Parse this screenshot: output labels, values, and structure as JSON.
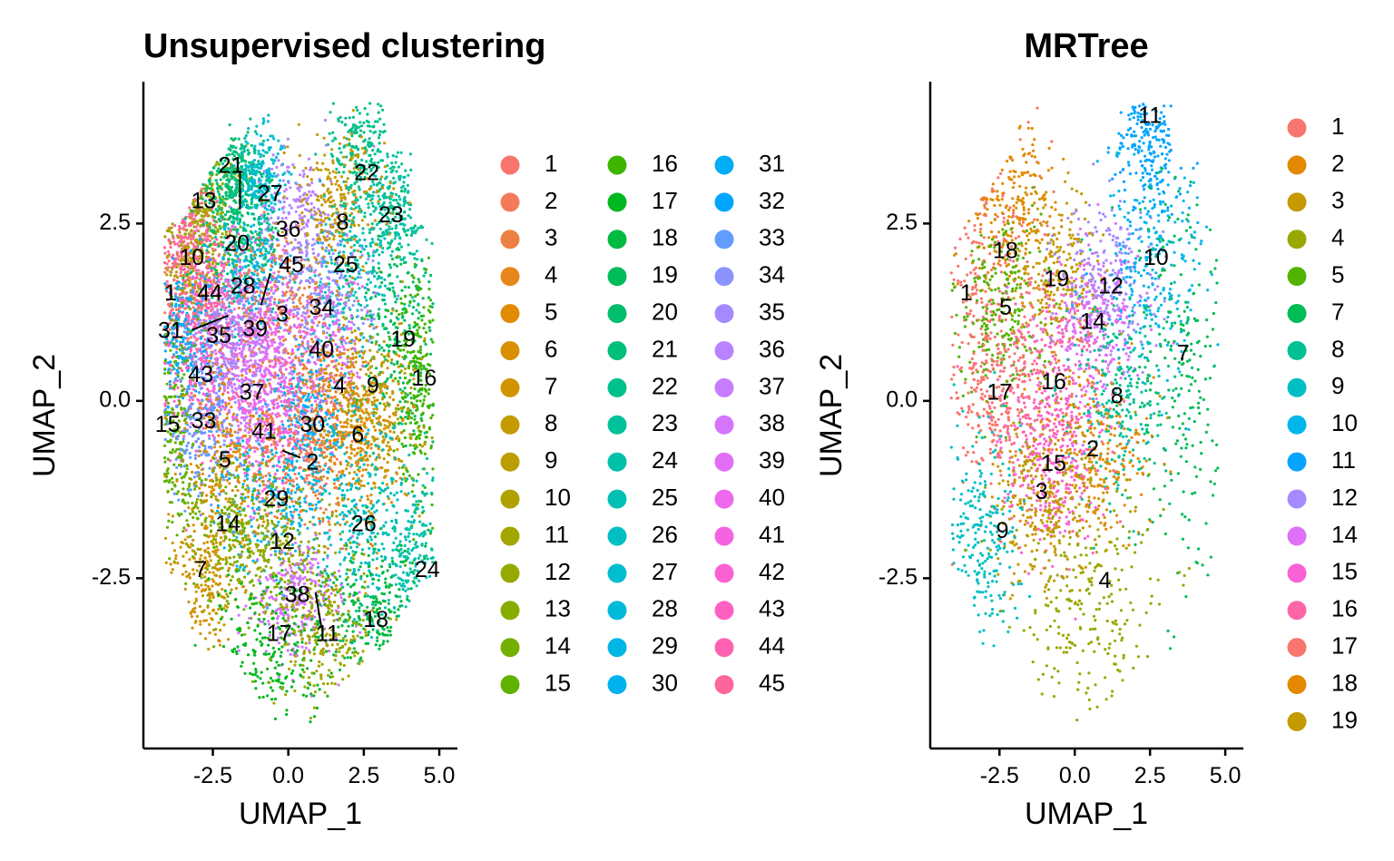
{
  "chart_data": [
    {
      "type": "scatter",
      "title": "Unsupervised clustering",
      "xlabel": "UMAP_1",
      "ylabel": "UMAP_2",
      "xlim": [
        -4.8,
        5.6
      ],
      "ylim": [
        -4.9,
        4.5
      ],
      "xticks": [
        -2.5,
        0.0,
        2.5,
        5.0
      ],
      "xtick_labels": [
        "-2.5",
        "0.0",
        "2.5",
        "5.0"
      ],
      "yticks": [
        -2.5,
        0.0,
        2.5
      ],
      "ytick_labels": [
        "-2.5",
        "0.0",
        "2.5"
      ],
      "grid": false,
      "legend_position": "right",
      "legend_columns": 3,
      "legend_items": [
        "1",
        "2",
        "3",
        "4",
        "5",
        "6",
        "7",
        "8",
        "9",
        "10",
        "11",
        "12",
        "13",
        "14",
        "15",
        "16",
        "17",
        "18",
        "19",
        "20",
        "21",
        "22",
        "23",
        "24",
        "25",
        "26",
        "27",
        "28",
        "29",
        "30",
        "31",
        "32",
        "33",
        "34",
        "35",
        "36",
        "37",
        "38",
        "39",
        "40",
        "41",
        "42",
        "43",
        "44",
        "45"
      ],
      "colors": [
        "#F8766D",
        "#F37B59",
        "#ED8141",
        "#E7861B",
        "#E08B00",
        "#D89000",
        "#CF9400",
        "#C59900",
        "#BB9D00",
        "#B0A100",
        "#A3A500",
        "#95A900",
        "#86AC00",
        "#75AF00",
        "#5FB200",
        "#3EB500",
        "#00B81F",
        "#00BA42",
        "#00BC59",
        "#00BE6B",
        "#00BF7C",
        "#00C08B",
        "#00C19A",
        "#00C1A8",
        "#00C0B5",
        "#00BFC2",
        "#00BDCF",
        "#00BADA",
        "#00B6E5",
        "#00B2EE",
        "#00ADF6",
        "#00A5FF",
        "#619CFF",
        "#8B93FF",
        "#A58AFF",
        "#B983FF",
        "#C77CFF",
        "#D575FE",
        "#E36EF6",
        "#ED68ED",
        "#F663E0",
        "#FC61D2",
        "#FF61C2",
        "#FF62B0",
        "#FF659D"
      ],
      "cluster_labels": [
        {
          "label": "21",
          "x": -1.9,
          "y": 3.3
        },
        {
          "label": "13",
          "x": -2.8,
          "y": 2.8
        },
        {
          "label": "27",
          "x": -0.6,
          "y": 2.9
        },
        {
          "label": "22",
          "x": 2.6,
          "y": 3.2
        },
        {
          "label": "36",
          "x": 0.0,
          "y": 2.4
        },
        {
          "label": "8",
          "x": 1.8,
          "y": 2.5
        },
        {
          "label": "23",
          "x": 3.4,
          "y": 2.6
        },
        {
          "label": "20",
          "x": -1.7,
          "y": 2.2
        },
        {
          "label": "10",
          "x": -3.2,
          "y": 2.0
        },
        {
          "label": "45",
          "x": 0.1,
          "y": 1.9
        },
        {
          "label": "25",
          "x": 1.9,
          "y": 1.9
        },
        {
          "label": "28",
          "x": -1.5,
          "y": 1.6
        },
        {
          "label": "44",
          "x": -2.6,
          "y": 1.5
        },
        {
          "label": "1",
          "x": -3.9,
          "y": 1.5
        },
        {
          "label": "34",
          "x": 1.1,
          "y": 1.3
        },
        {
          "label": "3",
          "x": -0.2,
          "y": 1.2
        },
        {
          "label": "39",
          "x": -1.1,
          "y": 1.0
        },
        {
          "label": "35",
          "x": -2.3,
          "y": 0.9
        },
        {
          "label": "31",
          "x": -3.9,
          "y": 0.97
        },
        {
          "label": "19",
          "x": 3.8,
          "y": 0.85
        },
        {
          "label": "40",
          "x": 1.1,
          "y": 0.7
        },
        {
          "label": "43",
          "x": -2.9,
          "y": 0.35
        },
        {
          "label": "16",
          "x": 4.5,
          "y": 0.3
        },
        {
          "label": "4",
          "x": 1.7,
          "y": 0.2
        },
        {
          "label": "9",
          "x": 2.8,
          "y": 0.2
        },
        {
          "label": "37",
          "x": -1.2,
          "y": 0.1
        },
        {
          "label": "15",
          "x": -4.0,
          "y": -0.35
        },
        {
          "label": "33",
          "x": -2.8,
          "y": -0.3
        },
        {
          "label": "30",
          "x": 0.8,
          "y": -0.35
        },
        {
          "label": "41",
          "x": -0.8,
          "y": -0.45
        },
        {
          "label": "6",
          "x": 2.3,
          "y": -0.5
        },
        {
          "label": "5",
          "x": -2.1,
          "y": -0.85
        },
        {
          "label": "2",
          "x": 0.8,
          "y": -0.88
        },
        {
          "label": "29",
          "x": -0.4,
          "y": -1.4
        },
        {
          "label": "26",
          "x": 2.5,
          "y": -1.75
        },
        {
          "label": "14",
          "x": -2.0,
          "y": -1.75
        },
        {
          "label": "12",
          "x": -0.2,
          "y": -2.0
        },
        {
          "label": "7",
          "x": -2.9,
          "y": -2.4
        },
        {
          "label": "24",
          "x": 4.6,
          "y": -2.4
        },
        {
          "label": "38",
          "x": 0.3,
          "y": -2.75
        },
        {
          "label": "18",
          "x": 2.9,
          "y": -3.1
        },
        {
          "label": "17",
          "x": -0.3,
          "y": -3.3
        },
        {
          "label": "11",
          "x": 1.3,
          "y": -3.3
        }
      ],
      "label_connectors": [
        {
          "from": [
            -1.6,
            3.25
          ],
          "to": [
            -1.6,
            2.7
          ]
        },
        {
          "from": [
            -0.6,
            1.8
          ],
          "to": [
            -0.9,
            1.35
          ]
        },
        {
          "from": [
            -3.2,
            1.0
          ],
          "to": [
            -2.0,
            1.2
          ]
        },
        {
          "from": [
            0.4,
            -0.8
          ],
          "to": [
            -0.2,
            -0.7
          ]
        },
        {
          "from": [
            0.9,
            -2.7
          ],
          "to": [
            1.1,
            -3.2
          ]
        }
      ],
      "regions": [
        {
          "cluster": "1",
          "x": -3.5,
          "y": 1.5,
          "sx": 0.55,
          "sy": 0.55
        },
        {
          "cluster": "13",
          "x": -2.7,
          "y": 2.8,
          "sx": 0.6,
          "sy": 0.4
        },
        {
          "cluster": "45",
          "x": -3.4,
          "y": 2.5,
          "sx": 0.5,
          "sy": 0.6
        },
        {
          "cluster": "10",
          "x": -3.1,
          "y": 2.0,
          "sx": 0.6,
          "sy": 0.5
        },
        {
          "cluster": "21",
          "x": -1.8,
          "y": 3.2,
          "sx": 0.5,
          "sy": 0.3
        },
        {
          "cluster": "27",
          "x": -0.9,
          "y": 3.1,
          "sx": 0.4,
          "sy": 0.35
        },
        {
          "cluster": "22",
          "x": 2.4,
          "y": 3.6,
          "sx": 0.5,
          "sy": 0.5
        },
        {
          "cluster": "23",
          "x": 3.6,
          "y": 2.6,
          "sx": 0.5,
          "sy": 0.5
        },
        {
          "cluster": "36",
          "x": 0.3,
          "y": 2.5,
          "sx": 0.7,
          "sy": 0.5
        },
        {
          "cluster": "8",
          "x": 1.6,
          "y": 2.7,
          "sx": 0.8,
          "sy": 0.5
        },
        {
          "cluster": "25",
          "x": 2.1,
          "y": 1.8,
          "sx": 0.9,
          "sy": 0.6
        },
        {
          "cluster": "20",
          "x": -1.6,
          "y": 2.3,
          "sx": 0.7,
          "sy": 0.5
        },
        {
          "cluster": "28",
          "x": -1.3,
          "y": 1.7,
          "sx": 0.6,
          "sy": 0.4
        },
        {
          "cluster": "44",
          "x": -2.5,
          "y": 1.5,
          "sx": 0.6,
          "sy": 0.5
        },
        {
          "cluster": "34",
          "x": 1.2,
          "y": 1.3,
          "sx": 0.8,
          "sy": 0.5
        },
        {
          "cluster": "3",
          "x": -0.3,
          "y": 1.2,
          "sx": 0.8,
          "sy": 0.6
        },
        {
          "cluster": "39",
          "x": -1.0,
          "y": 1.0,
          "sx": 0.6,
          "sy": 0.4
        },
        {
          "cluster": "35",
          "x": -2.2,
          "y": 0.8,
          "sx": 0.6,
          "sy": 0.5
        },
        {
          "cluster": "31",
          "x": -3.6,
          "y": 0.9,
          "sx": 0.5,
          "sy": 0.5
        },
        {
          "cluster": "43",
          "x": -2.9,
          "y": 0.3,
          "sx": 0.7,
          "sy": 0.6
        },
        {
          "cluster": "19",
          "x": 3.6,
          "y": 0.9,
          "sx": 0.8,
          "sy": 0.7
        },
        {
          "cluster": "16",
          "x": 4.3,
          "y": 0.2,
          "sx": 0.4,
          "sy": 0.9
        },
        {
          "cluster": "40",
          "x": 1.0,
          "y": 0.6,
          "sx": 0.8,
          "sy": 0.6
        },
        {
          "cluster": "4",
          "x": 1.6,
          "y": 0.0,
          "sx": 0.8,
          "sy": 0.6
        },
        {
          "cluster": "9",
          "x": 2.8,
          "y": 0.0,
          "sx": 0.8,
          "sy": 0.6
        },
        {
          "cluster": "37",
          "x": -1.1,
          "y": 0.1,
          "sx": 0.8,
          "sy": 0.5
        },
        {
          "cluster": "15",
          "x": -3.8,
          "y": -0.4,
          "sx": 0.4,
          "sy": 0.8
        },
        {
          "cluster": "33",
          "x": -2.7,
          "y": -0.3,
          "sx": 0.6,
          "sy": 0.6
        },
        {
          "cluster": "30",
          "x": 0.8,
          "y": -0.3,
          "sx": 0.7,
          "sy": 0.5
        },
        {
          "cluster": "41",
          "x": -0.6,
          "y": -0.4,
          "sx": 0.7,
          "sy": 0.5
        },
        {
          "cluster": "6",
          "x": 2.3,
          "y": -0.6,
          "sx": 0.8,
          "sy": 0.6
        },
        {
          "cluster": "5",
          "x": -2.0,
          "y": -0.9,
          "sx": 0.8,
          "sy": 0.7
        },
        {
          "cluster": "2",
          "x": 0.5,
          "y": -0.9,
          "sx": 0.8,
          "sy": 0.5
        },
        {
          "cluster": "29",
          "x": -0.4,
          "y": -1.4,
          "sx": 0.9,
          "sy": 0.5
        },
        {
          "cluster": "26",
          "x": 2.6,
          "y": -1.7,
          "sx": 0.8,
          "sy": 0.7
        },
        {
          "cluster": "24",
          "x": 4.2,
          "y": -2.3,
          "sx": 0.5,
          "sy": 0.7
        },
        {
          "cluster": "14",
          "x": -2.0,
          "y": -1.8,
          "sx": 0.8,
          "sy": 0.6
        },
        {
          "cluster": "12",
          "x": -0.2,
          "y": -2.1,
          "sx": 0.9,
          "sy": 0.5
        },
        {
          "cluster": "7",
          "x": -2.8,
          "y": -2.5,
          "sx": 0.6,
          "sy": 0.6
        },
        {
          "cluster": "38",
          "x": 0.4,
          "y": -2.8,
          "sx": 0.8,
          "sy": 0.4
        },
        {
          "cluster": "18",
          "x": 2.7,
          "y": -3.0,
          "sx": 0.8,
          "sy": 0.5
        },
        {
          "cluster": "17",
          "x": -0.4,
          "y": -3.5,
          "sx": 1.2,
          "sy": 0.5
        },
        {
          "cluster": "11",
          "x": 1.3,
          "y": -3.4,
          "sx": 0.9,
          "sy": 0.6
        }
      ]
    },
    {
      "type": "scatter",
      "title": "MRTree",
      "xlabel": "UMAP_1",
      "ylabel": "UMAP_2",
      "xlim": [
        -4.8,
        5.6
      ],
      "ylim": [
        -4.9,
        4.5
      ],
      "xticks": [
        -2.5,
        0.0,
        2.5,
        5.0
      ],
      "xtick_labels": [
        "-2.5",
        "0.0",
        "2.5",
        "5.0"
      ],
      "yticks": [
        -2.5,
        0.0,
        2.5
      ],
      "ytick_labels": [
        "-2.5",
        "0.0",
        "2.5"
      ],
      "grid": false,
      "legend_position": "right",
      "legend_columns": 1,
      "legend_items": [
        "1",
        "2",
        "3",
        "4",
        "5",
        "7",
        "8",
        "9",
        "10",
        "11",
        "12",
        "14",
        "15",
        "16",
        "17",
        "18",
        "19"
      ],
      "colors": [
        "#F8766D",
        "#E38900",
        "#C49A00",
        "#99A800",
        "#53B400",
        "#00BC56",
        "#00C094",
        "#00BFC4",
        "#00B6EB",
        "#06A4FF",
        "#A58AFF",
        "#DF70F8",
        "#FB61D7",
        "#FF66A8",
        "#F8766D",
        "#E38900",
        "#C49A00"
      ],
      "cluster_labels": [
        {
          "label": "11",
          "x": 2.5,
          "y": 4.0
        },
        {
          "label": "18",
          "x": -2.3,
          "y": 2.1
        },
        {
          "label": "10",
          "x": 2.7,
          "y": 2.0
        },
        {
          "label": "1",
          "x": -3.6,
          "y": 1.5
        },
        {
          "label": "19",
          "x": -0.6,
          "y": 1.7
        },
        {
          "label": "12",
          "x": 1.2,
          "y": 1.6
        },
        {
          "label": "5",
          "x": -2.3,
          "y": 1.3
        },
        {
          "label": "14",
          "x": 0.6,
          "y": 1.1
        },
        {
          "label": "7",
          "x": 3.6,
          "y": 0.65
        },
        {
          "label": "17",
          "x": -2.5,
          "y": 0.1
        },
        {
          "label": "16",
          "x": -0.7,
          "y": 0.25
        },
        {
          "label": "8",
          "x": 1.4,
          "y": 0.05
        },
        {
          "label": "2",
          "x": 0.6,
          "y": -0.7
        },
        {
          "label": "15",
          "x": -0.7,
          "y": -0.9
        },
        {
          "label": "3",
          "x": -1.1,
          "y": -1.3
        },
        {
          "label": "9",
          "x": -2.4,
          "y": -1.85
        },
        {
          "label": "4",
          "x": 1.0,
          "y": -2.55
        }
      ],
      "regions": [
        {
          "cluster": "1",
          "x": -3.2,
          "y": 2.0,
          "sx": 0.9,
          "sy": 1.2
        },
        {
          "cluster": "18",
          "x": -2.2,
          "y": 2.8,
          "sx": 0.8,
          "sy": 0.6
        },
        {
          "cluster": "5",
          "x": -2.3,
          "y": 1.2,
          "sx": 0.8,
          "sy": 0.7
        },
        {
          "cluster": "17",
          "x": -2.6,
          "y": 0.0,
          "sx": 0.8,
          "sy": 0.8
        },
        {
          "cluster": "19",
          "x": -0.6,
          "y": 1.7,
          "sx": 0.8,
          "sy": 0.6
        },
        {
          "cluster": "12",
          "x": 1.2,
          "y": 1.6,
          "sx": 0.8,
          "sy": 0.6
        },
        {
          "cluster": "14",
          "x": 0.6,
          "y": 1.0,
          "sx": 0.8,
          "sy": 0.6
        },
        {
          "cluster": "10",
          "x": 2.6,
          "y": 2.0,
          "sx": 0.9,
          "sy": 0.8
        },
        {
          "cluster": "11",
          "x": 2.5,
          "y": 3.7,
          "sx": 0.6,
          "sy": 0.5
        },
        {
          "cluster": "7",
          "x": 3.8,
          "y": 0.5,
          "sx": 0.9,
          "sy": 1.6
        },
        {
          "cluster": "16",
          "x": -0.7,
          "y": 0.2,
          "sx": 0.9,
          "sy": 0.7
        },
        {
          "cluster": "8",
          "x": 1.4,
          "y": 0.0,
          "sx": 0.9,
          "sy": 0.7
        },
        {
          "cluster": "2",
          "x": 0.6,
          "y": -0.8,
          "sx": 0.9,
          "sy": 0.6
        },
        {
          "cluster": "15",
          "x": -0.8,
          "y": -0.9,
          "sx": 0.8,
          "sy": 0.6
        },
        {
          "cluster": "3",
          "x": -1.1,
          "y": -1.5,
          "sx": 0.9,
          "sy": 0.6
        },
        {
          "cluster": "9",
          "x": -3.0,
          "y": -2.0,
          "sx": 0.6,
          "sy": 0.8
        },
        {
          "cluster": "4",
          "x": 0.6,
          "y": -2.9,
          "sx": 1.4,
          "sy": 0.9
        }
      ]
    }
  ]
}
